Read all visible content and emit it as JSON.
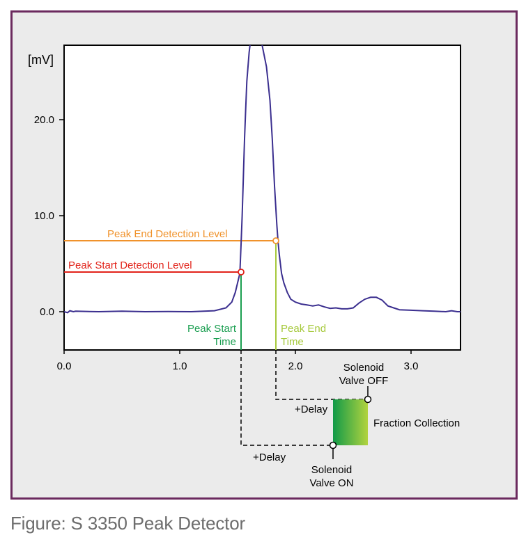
{
  "caption": "Figure: S 3350 Peak Detector",
  "colors": {
    "frame_border": "#6b2a5e",
    "frame_fill": "#ebebeb",
    "signal": "#3b2f8f",
    "peak_start": "#e2231a",
    "peak_end": "#f0922b",
    "peak_start_time": "#1a9e50",
    "peak_end_time": "#a6c93c",
    "gradient_start": "#119a48",
    "gradient_end": "#b2d33f"
  },
  "chart_data": {
    "type": "line",
    "ylabel": "[mV]",
    "xlim": [
      0.0,
      3.45
    ],
    "ylim": [
      -4.0,
      25.5
    ],
    "x_ticks": [
      {
        "value": 0.0,
        "label": "0.0"
      },
      {
        "value": 1.0,
        "label": "1.0"
      },
      {
        "value": 2.0,
        "label": "2.0"
      },
      {
        "value": 3.0,
        "label": "3.0"
      }
    ],
    "y_ticks": [
      {
        "value": 0.0,
        "label": "0.0"
      },
      {
        "value": 10.0,
        "label": "10.0"
      },
      {
        "value": 20.0,
        "label": "20.0"
      }
    ],
    "series": [
      {
        "x": [
          0.0,
          0.03,
          0.05,
          0.08,
          0.1,
          0.3,
          0.5,
          0.7,
          0.9,
          1.1,
          1.3,
          1.4,
          1.45,
          1.48,
          1.5,
          1.52,
          1.53,
          1.54,
          1.55,
          1.56,
          1.57,
          1.58,
          1.6,
          1.62,
          1.64,
          1.66,
          1.68,
          1.7,
          1.75,
          1.78,
          1.8,
          1.82,
          1.84,
          1.85,
          1.86,
          1.88,
          1.9,
          1.93,
          1.96,
          2.0,
          2.05,
          2.1,
          2.15,
          2.2,
          2.25,
          2.3,
          2.35,
          2.4,
          2.45,
          2.5,
          2.55,
          2.6,
          2.65,
          2.7,
          2.75,
          2.8,
          2.85,
          2.9,
          3.0,
          3.1,
          3.2,
          3.3,
          3.35,
          3.4,
          3.45
        ],
        "y": [
          0.0,
          -0.1,
          0.1,
          0.0,
          0.05,
          0.0,
          0.05,
          0.0,
          0.02,
          0.0,
          0.1,
          0.4,
          1.0,
          2.0,
          3.0,
          4.0,
          7.0,
          10.0,
          14.0,
          18.0,
          21.0,
          24.0,
          27.0,
          29.0,
          30.0,
          30.0,
          29.5,
          28.5,
          25.5,
          22.0,
          18.0,
          13.0,
          9.0,
          7.3,
          6.0,
          4.0,
          3.0,
          2.0,
          1.3,
          1.0,
          0.8,
          0.7,
          0.6,
          0.7,
          0.5,
          0.35,
          0.4,
          0.3,
          0.3,
          0.4,
          0.9,
          1.3,
          1.5,
          1.5,
          1.2,
          0.6,
          0.4,
          0.2,
          0.15,
          0.1,
          0.05,
          0.0,
          0.1,
          0.0,
          0.0
        ]
      }
    ],
    "annotations": {
      "start_level": {
        "label": "Peak Start Detection Level",
        "y": 4.0,
        "x_point": 1.53
      },
      "end_level": {
        "label": "Peak End Detection Level",
        "y": 7.3,
        "x_point": 1.84
      },
      "start_time": {
        "line1": "Peak Start",
        "line2": "Time"
      },
      "end_time": {
        "line1": "Peak End",
        "line2": "Time"
      },
      "delay_upper": "+Delay",
      "delay_lower": "+Delay",
      "valve_off": {
        "line1": "Solenoid",
        "line2": "Valve OFF"
      },
      "valve_on": {
        "line1": "Solenoid",
        "line2": "Valve ON"
      },
      "fraction": "Fraction Collection"
    }
  }
}
